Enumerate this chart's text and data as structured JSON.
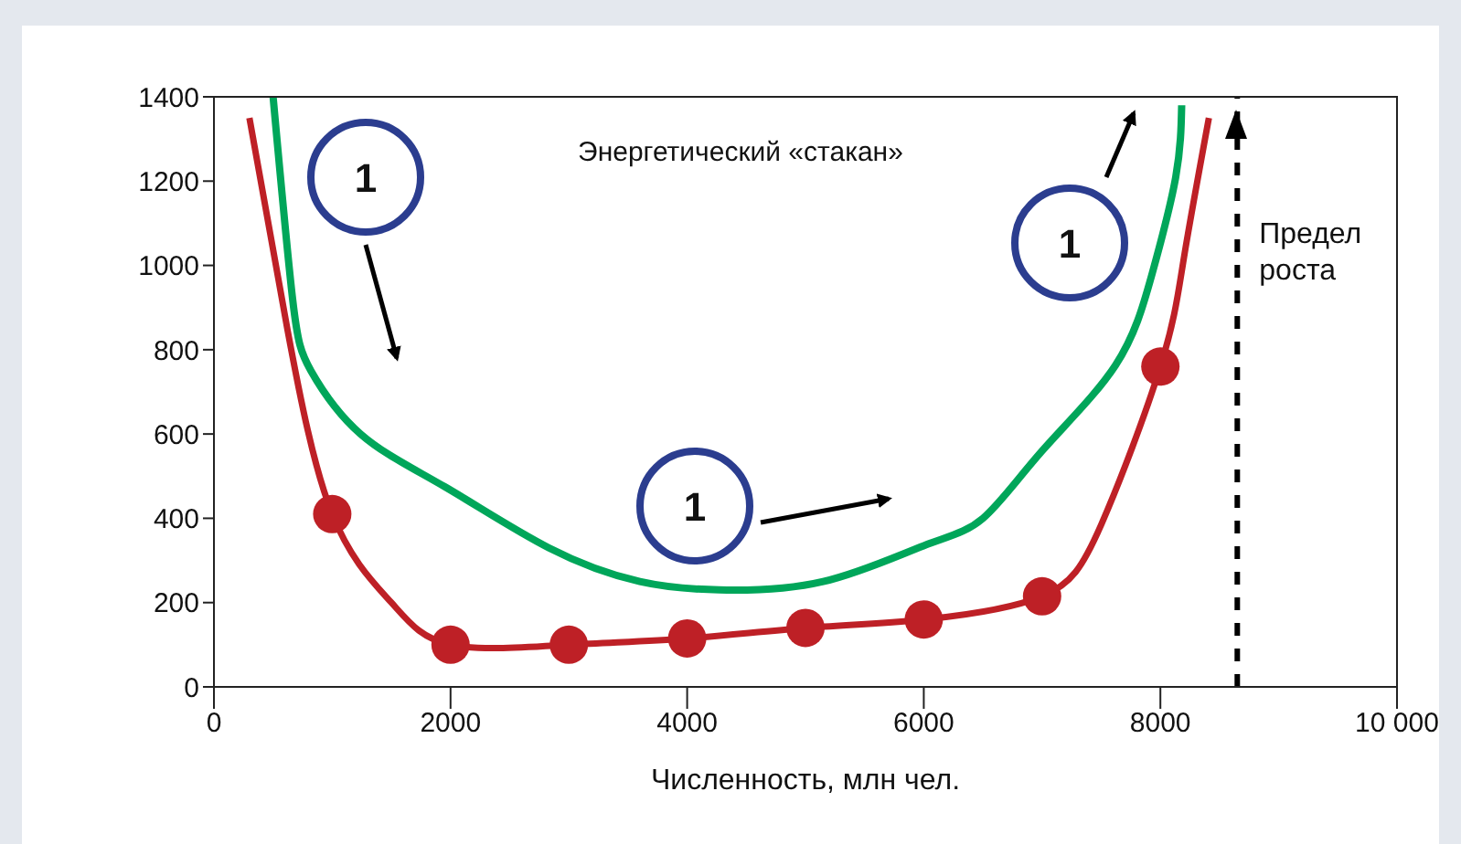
{
  "chart_data": {
    "type": "line",
    "xlabel": "Численность, млн чел.",
    "xlim": [
      0,
      10000
    ],
    "ylim": [
      0,
      1400
    ],
    "xticks": [
      0,
      2000,
      4000,
      6000,
      8000,
      {
        "value": 10000,
        "label": "10 000"
      }
    ],
    "yticks": [
      0,
      200,
      400,
      600,
      800,
      1000,
      1200,
      1400
    ],
    "series": [
      {
        "color": "#be2026",
        "marker": "none",
        "x": [
          300,
          620,
          1000,
          1500,
          2000,
          3000,
          4000,
          5000,
          6000,
          7000,
          7500,
          8000,
          8200,
          8410
        ],
        "values": [
          1350,
          850,
          410,
          200,
          100,
          100,
          115,
          140,
          160,
          215,
          385,
          760,
          1020,
          1350
        ]
      },
      {
        "type": "scatter",
        "color": "#be2026",
        "marker": "circle",
        "x": [
          1000,
          2000,
          3000,
          4000,
          5000,
          6000,
          7000,
          8000
        ],
        "values": [
          410,
          100,
          100,
          115,
          140,
          160,
          215,
          760
        ]
      },
      {
        "color": "#00a65a",
        "marker": "none",
        "x": [
          500,
          665,
          820,
          1240,
          1950,
          2830,
          3600,
          4270,
          5150,
          6000,
          6500,
          7000,
          7620,
          7930,
          8130,
          8180
        ],
        "values": [
          1400,
          920,
          750,
          600,
          475,
          330,
          250,
          230,
          250,
          335,
          400,
          560,
          763,
          980,
          1210,
          1380
        ]
      }
    ],
    "ref_lines": [
      {
        "axis": "x",
        "value": 8650,
        "label": "Предел роста",
        "line_style": "dashed",
        "color": "#000000"
      }
    ],
    "annotations": [
      "Энергетический «стакан»",
      "1",
      "1",
      "1"
    ]
  }
}
